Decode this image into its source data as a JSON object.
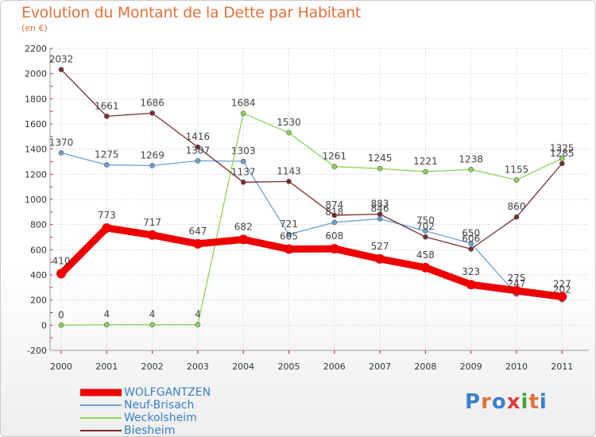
{
  "title": "Evolution du Montant de la Dette par Habitant",
  "unit_label": "(en €)",
  "logo": {
    "text": "Proxiti",
    "colors": [
      "#3a80c8",
      "#e2713a",
      "#3a80c8",
      "#e03a3a",
      "#3aa63a",
      "#e2713a",
      "#3a80c8"
    ]
  },
  "chart_data": {
    "type": "line",
    "title": "Evolution du Montant de la Dette par Habitant",
    "ylabel": "(en €)",
    "xlabel": "",
    "x": [
      "2000",
      "2001",
      "2002",
      "2003",
      "2004",
      "2005",
      "2006",
      "2007",
      "2008",
      "2009",
      "2010",
      "2011"
    ],
    "ylim": [
      -200,
      2200
    ],
    "yticks": [
      -200,
      0,
      200,
      400,
      600,
      800,
      1000,
      1200,
      1400,
      1600,
      1800,
      2000,
      2200
    ],
    "grid": true,
    "legend_position": "bottom-left",
    "series": [
      {
        "name": "WOLFGANTZEN",
        "color": "#ee0000",
        "values": [
          410,
          773,
          717,
          647,
          682,
          605,
          608,
          527,
          458,
          323,
          275,
          227
        ]
      },
      {
        "name": "Neuf-Brisach",
        "color": "#6aa3d5",
        "values": [
          1370,
          1275,
          1269,
          1307,
          1303,
          721,
          818,
          846,
          750,
          650,
          247,
          202
        ]
      },
      {
        "name": "Weckolsheim",
        "color": "#8bd45a",
        "values": [
          0,
          4,
          4,
          4,
          1684,
          1530,
          1261,
          1245,
          1221,
          1238,
          1155,
          1325
        ]
      },
      {
        "name": "Biesheim",
        "color": "#7a2c2c",
        "values": [
          2032,
          1661,
          1686,
          1416,
          1137,
          1143,
          874,
          883,
          702,
          606,
          860,
          1285
        ]
      }
    ]
  }
}
